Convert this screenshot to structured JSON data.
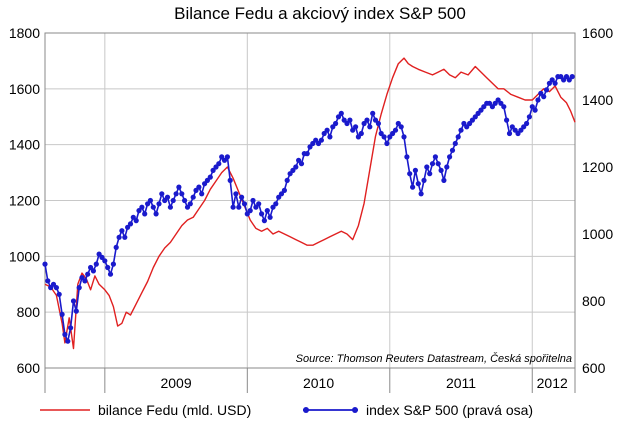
{
  "chart_data": {
    "type": "line",
    "title": "Bilance Fedu a akciový index S&P 500",
    "source": "Source: Thomson Reuters Datastream, Česká spořitelna",
    "x_range": [
      2008.58,
      2012.3
    ],
    "x_tick_labels": [
      "2009",
      "2010",
      "2011",
      "2012"
    ],
    "x_tick_values": [
      2009.0,
      2010.0,
      2011.0,
      2012.0
    ],
    "left_axis": {
      "ylim": [
        600,
        1800
      ],
      "ticks": [
        "600",
        "800",
        "1000",
        "1200",
        "1400",
        "1600",
        "1800"
      ]
    },
    "right_axis": {
      "ylim": [
        600,
        1600
      ],
      "ticks": [
        "600",
        "800",
        "1000",
        "1200",
        "1400",
        "1600"
      ]
    },
    "grid": true,
    "legend": "bottom",
    "series": [
      {
        "name": "bilance Fedu (mld. USD)",
        "axis": "left",
        "color": "#e02020",
        "points": [
          [
            2008.58,
            900
          ],
          [
            2008.62,
            890
          ],
          [
            2008.66,
            860
          ],
          [
            2008.7,
            760
          ],
          [
            2008.72,
            690
          ],
          [
            2008.75,
            780
          ],
          [
            2008.78,
            670
          ],
          [
            2008.81,
            900
          ],
          [
            2008.84,
            940
          ],
          [
            2008.87,
            920
          ],
          [
            2008.9,
            880
          ],
          [
            2008.93,
            930
          ],
          [
            2008.96,
            900
          ],
          [
            2009.0,
            880
          ],
          [
            2009.03,
            860
          ],
          [
            2009.06,
            820
          ],
          [
            2009.09,
            750
          ],
          [
            2009.12,
            760
          ],
          [
            2009.15,
            800
          ],
          [
            2009.18,
            790
          ],
          [
            2009.22,
            830
          ],
          [
            2009.26,
            870
          ],
          [
            2009.3,
            910
          ],
          [
            2009.34,
            960
          ],
          [
            2009.38,
            1000
          ],
          [
            2009.42,
            1030
          ],
          [
            2009.46,
            1050
          ],
          [
            2009.5,
            1080
          ],
          [
            2009.54,
            1110
          ],
          [
            2009.58,
            1130
          ],
          [
            2009.62,
            1140
          ],
          [
            2009.66,
            1170
          ],
          [
            2009.7,
            1200
          ],
          [
            2009.74,
            1240
          ],
          [
            2009.78,
            1270
          ],
          [
            2009.82,
            1300
          ],
          [
            2009.86,
            1320
          ],
          [
            2009.9,
            1280
          ],
          [
            2009.94,
            1230
          ],
          [
            2009.98,
            1180
          ],
          [
            2010.02,
            1130
          ],
          [
            2010.06,
            1100
          ],
          [
            2010.1,
            1090
          ],
          [
            2010.14,
            1100
          ],
          [
            2010.18,
            1080
          ],
          [
            2010.22,
            1090
          ],
          [
            2010.26,
            1080
          ],
          [
            2010.3,
            1070
          ],
          [
            2010.34,
            1060
          ],
          [
            2010.38,
            1050
          ],
          [
            2010.42,
            1040
          ],
          [
            2010.46,
            1040
          ],
          [
            2010.5,
            1050
          ],
          [
            2010.54,
            1060
          ],
          [
            2010.58,
            1070
          ],
          [
            2010.62,
            1080
          ],
          [
            2010.66,
            1090
          ],
          [
            2010.7,
            1080
          ],
          [
            2010.74,
            1060
          ],
          [
            2010.78,
            1110
          ],
          [
            2010.82,
            1190
          ],
          [
            2010.86,
            1310
          ],
          [
            2010.9,
            1430
          ],
          [
            2010.94,
            1510
          ],
          [
            2010.98,
            1580
          ],
          [
            2011.02,
            1640
          ],
          [
            2011.06,
            1690
          ],
          [
            2011.1,
            1710
          ],
          [
            2011.13,
            1690
          ],
          [
            2011.16,
            1680
          ],
          [
            2011.2,
            1670
          ],
          [
            2011.25,
            1660
          ],
          [
            2011.3,
            1650
          ],
          [
            2011.34,
            1660
          ],
          [
            2011.38,
            1670
          ],
          [
            2011.42,
            1650
          ],
          [
            2011.46,
            1640
          ],
          [
            2011.5,
            1660
          ],
          [
            2011.55,
            1650
          ],
          [
            2011.6,
            1680
          ],
          [
            2011.64,
            1660
          ],
          [
            2011.68,
            1640
          ],
          [
            2011.72,
            1620
          ],
          [
            2011.76,
            1600
          ],
          [
            2011.8,
            1600
          ],
          [
            2011.85,
            1580
          ],
          [
            2011.9,
            1570
          ],
          [
            2011.95,
            1560
          ],
          [
            2012.0,
            1560
          ],
          [
            2012.04,
            1580
          ],
          [
            2012.08,
            1600
          ],
          [
            2012.12,
            1590
          ],
          [
            2012.16,
            1610
          ],
          [
            2012.2,
            1570
          ],
          [
            2012.24,
            1550
          ],
          [
            2012.27,
            1520
          ],
          [
            2012.3,
            1480
          ]
        ]
      },
      {
        "name": "index S&P 500 (pravá osa)",
        "axis": "right",
        "color": "#1a1acc",
        "points": [
          [
            2008.58,
            910
          ],
          [
            2008.6,
            860
          ],
          [
            2008.62,
            840
          ],
          [
            2008.64,
            850
          ],
          [
            2008.66,
            840
          ],
          [
            2008.68,
            820
          ],
          [
            2008.7,
            760
          ],
          [
            2008.72,
            700
          ],
          [
            2008.74,
            680
          ],
          [
            2008.76,
            720
          ],
          [
            2008.78,
            800
          ],
          [
            2008.8,
            770
          ],
          [
            2008.82,
            840
          ],
          [
            2008.84,
            870
          ],
          [
            2008.86,
            860
          ],
          [
            2008.88,
            880
          ],
          [
            2008.9,
            900
          ],
          [
            2008.92,
            890
          ],
          [
            2008.94,
            910
          ],
          [
            2008.96,
            940
          ],
          [
            2008.98,
            930
          ],
          [
            2009.0,
            920
          ],
          [
            2009.02,
            900
          ],
          [
            2009.04,
            880
          ],
          [
            2009.06,
            910
          ],
          [
            2009.08,
            960
          ],
          [
            2009.1,
            990
          ],
          [
            2009.12,
            1010
          ],
          [
            2009.14,
            990
          ],
          [
            2009.16,
            1020
          ],
          [
            2009.18,
            1030
          ],
          [
            2009.2,
            1050
          ],
          [
            2009.22,
            1040
          ],
          [
            2009.24,
            1070
          ],
          [
            2009.26,
            1080
          ],
          [
            2009.28,
            1060
          ],
          [
            2009.3,
            1090
          ],
          [
            2009.32,
            1100
          ],
          [
            2009.34,
            1080
          ],
          [
            2009.36,
            1060
          ],
          [
            2009.38,
            1090
          ],
          [
            2009.4,
            1120
          ],
          [
            2009.42,
            1100
          ],
          [
            2009.44,
            1110
          ],
          [
            2009.46,
            1080
          ],
          [
            2009.48,
            1100
          ],
          [
            2009.5,
            1120
          ],
          [
            2009.52,
            1140
          ],
          [
            2009.54,
            1120
          ],
          [
            2009.56,
            1100
          ],
          [
            2009.58,
            1080
          ],
          [
            2009.6,
            1090
          ],
          [
            2009.62,
            1110
          ],
          [
            2009.64,
            1130
          ],
          [
            2009.66,
            1140
          ],
          [
            2009.68,
            1120
          ],
          [
            2009.7,
            1150
          ],
          [
            2009.72,
            1160
          ],
          [
            2009.74,
            1170
          ],
          [
            2009.76,
            1190
          ],
          [
            2009.78,
            1200
          ],
          [
            2009.8,
            1210
          ],
          [
            2009.82,
            1230
          ],
          [
            2009.84,
            1220
          ],
          [
            2009.86,
            1230
          ],
          [
            2009.88,
            1160
          ],
          [
            2009.9,
            1080
          ],
          [
            2009.92,
            1120
          ],
          [
            2009.94,
            1080
          ],
          [
            2009.96,
            1110
          ],
          [
            2009.98,
            1090
          ],
          [
            2010.0,
            1060
          ],
          [
            2010.02,
            1070
          ],
          [
            2010.04,
            1100
          ],
          [
            2010.06,
            1080
          ],
          [
            2010.08,
            1090
          ],
          [
            2010.1,
            1060
          ],
          [
            2010.12,
            1040
          ],
          [
            2010.14,
            1070
          ],
          [
            2010.16,
            1050
          ],
          [
            2010.18,
            1080
          ],
          [
            2010.2,
            1090
          ],
          [
            2010.22,
            1110
          ],
          [
            2010.24,
            1120
          ],
          [
            2010.26,
            1130
          ],
          [
            2010.28,
            1160
          ],
          [
            2010.3,
            1180
          ],
          [
            2010.32,
            1190
          ],
          [
            2010.34,
            1200
          ],
          [
            2010.36,
            1220
          ],
          [
            2010.38,
            1210
          ],
          [
            2010.4,
            1240
          ],
          [
            2010.42,
            1240
          ],
          [
            2010.44,
            1260
          ],
          [
            2010.46,
            1270
          ],
          [
            2010.48,
            1280
          ],
          [
            2010.5,
            1270
          ],
          [
            2010.52,
            1280
          ],
          [
            2010.54,
            1300
          ],
          [
            2010.56,
            1310
          ],
          [
            2010.58,
            1290
          ],
          [
            2010.6,
            1320
          ],
          [
            2010.62,
            1330
          ],
          [
            2010.64,
            1350
          ],
          [
            2010.66,
            1360
          ],
          [
            2010.68,
            1340
          ],
          [
            2010.7,
            1330
          ],
          [
            2010.72,
            1340
          ],
          [
            2010.74,
            1310
          ],
          [
            2010.76,
            1320
          ],
          [
            2010.78,
            1290
          ],
          [
            2010.8,
            1300
          ],
          [
            2010.82,
            1330
          ],
          [
            2010.84,
            1340
          ],
          [
            2010.86,
            1320
          ],
          [
            2010.88,
            1360
          ],
          [
            2010.9,
            1340
          ],
          [
            2010.92,
            1330
          ],
          [
            2010.94,
            1300
          ],
          [
            2010.96,
            1290
          ],
          [
            2010.98,
            1270
          ],
          [
            2011.0,
            1290
          ],
          [
            2011.02,
            1300
          ],
          [
            2011.04,
            1310
          ],
          [
            2011.06,
            1330
          ],
          [
            2011.08,
            1320
          ],
          [
            2011.1,
            1290
          ],
          [
            2011.12,
            1230
          ],
          [
            2011.14,
            1180
          ],
          [
            2011.16,
            1140
          ],
          [
            2011.18,
            1190
          ],
          [
            2011.2,
            1150
          ],
          [
            2011.22,
            1120
          ],
          [
            2011.24,
            1160
          ],
          [
            2011.26,
            1200
          ],
          [
            2011.28,
            1180
          ],
          [
            2011.3,
            1210
          ],
          [
            2011.32,
            1230
          ],
          [
            2011.34,
            1210
          ],
          [
            2011.36,
            1190
          ],
          [
            2011.38,
            1160
          ],
          [
            2011.4,
            1200
          ],
          [
            2011.42,
            1230
          ],
          [
            2011.44,
            1250
          ],
          [
            2011.46,
            1270
          ],
          [
            2011.48,
            1290
          ],
          [
            2011.5,
            1310
          ],
          [
            2011.52,
            1330
          ],
          [
            2011.54,
            1320
          ],
          [
            2011.56,
            1330
          ],
          [
            2011.58,
            1340
          ],
          [
            2011.6,
            1350
          ],
          [
            2011.62,
            1360
          ],
          [
            2011.64,
            1370
          ],
          [
            2011.66,
            1380
          ],
          [
            2011.68,
            1390
          ],
          [
            2011.7,
            1390
          ],
          [
            2011.72,
            1380
          ],
          [
            2011.74,
            1390
          ],
          [
            2011.76,
            1400
          ],
          [
            2011.78,
            1390
          ],
          [
            2011.8,
            1380
          ],
          [
            2011.82,
            1340
          ],
          [
            2011.84,
            1300
          ],
          [
            2011.86,
            1320
          ],
          [
            2011.88,
            1310
          ],
          [
            2011.9,
            1300
          ],
          [
            2011.92,
            1310
          ],
          [
            2011.94,
            1320
          ],
          [
            2011.96,
            1330
          ],
          [
            2011.98,
            1350
          ],
          [
            2012.0,
            1380
          ],
          [
            2012.02,
            1370
          ],
          [
            2012.04,
            1400
          ],
          [
            2012.06,
            1420
          ],
          [
            2012.08,
            1410
          ],
          [
            2012.1,
            1430
          ],
          [
            2012.12,
            1450
          ],
          [
            2012.14,
            1460
          ],
          [
            2012.16,
            1450
          ],
          [
            2012.18,
            1470
          ],
          [
            2012.2,
            1470
          ],
          [
            2012.22,
            1460
          ],
          [
            2012.24,
            1470
          ],
          [
            2012.26,
            1460
          ],
          [
            2012.28,
            1470
          ]
        ]
      }
    ]
  }
}
